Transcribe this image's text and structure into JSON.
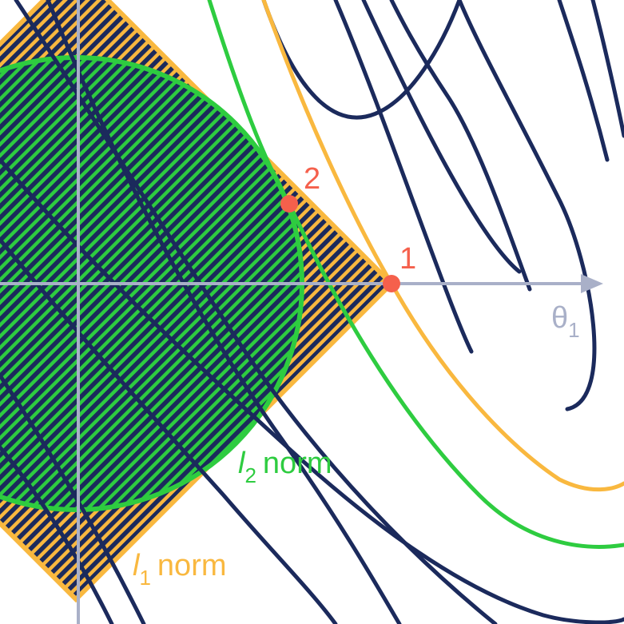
{
  "axis": {
    "x_label": "θ",
    "x_label_sub": "1"
  },
  "labels": {
    "l1": {
      "symbol": "l",
      "sub": "1",
      "word": "norm"
    },
    "l2": {
      "symbol": "l",
      "sub": "2",
      "word": "norm"
    }
  },
  "points": [
    {
      "label": "1"
    },
    {
      "label": "2"
    }
  ],
  "colors": {
    "navy": "#1b2a5c",
    "orange": "#f9b83f",
    "green": "#2ecc40",
    "axis": "#a9b0c8",
    "point": "#f5604c",
    "background": "#ffffff"
  }
}
